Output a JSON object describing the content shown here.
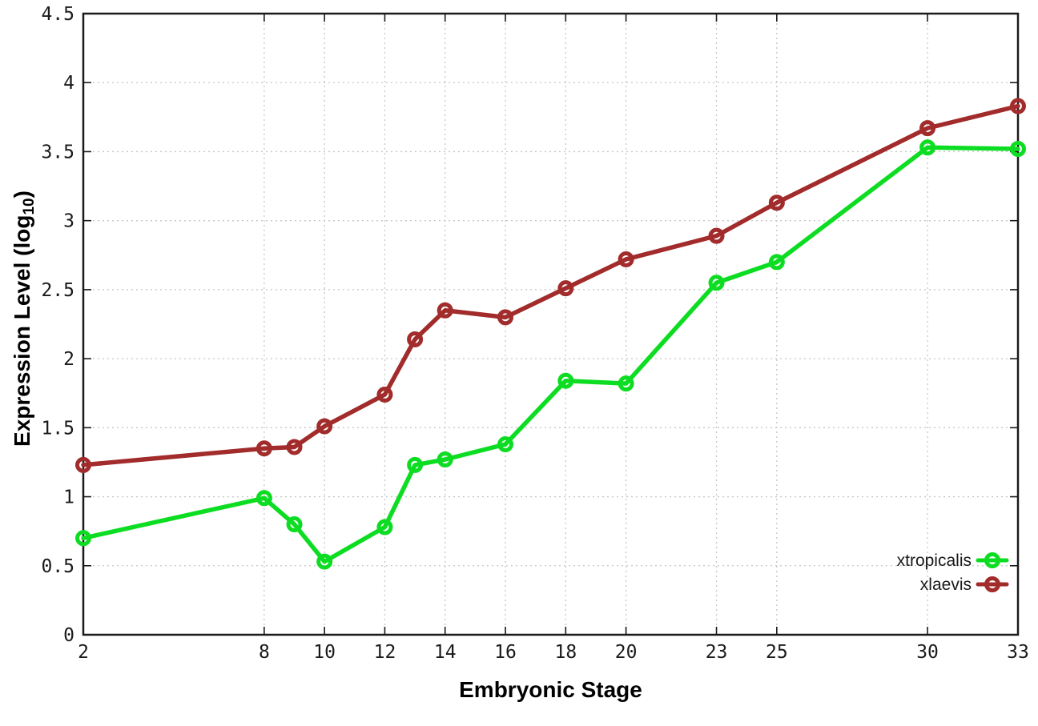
{
  "chart_data": {
    "type": "line",
    "title": "",
    "xlabel": "Embryonic Stage",
    "ylabel": "Expression Level (log10)",
    "ylabel_prefix": "Expression Level (log",
    "ylabel_sub": "10",
    "ylabel_suffix": ")",
    "xlim": [
      2,
      33
    ],
    "ylim": [
      0,
      4.5
    ],
    "grid": true,
    "legend_position": "bottom-right",
    "xtick_values": [
      2,
      8,
      10,
      12,
      14,
      16,
      18,
      20,
      23,
      25,
      30,
      33
    ],
    "xtick_labels": [
      "2",
      "8",
      "10",
      "12",
      "14",
      "16",
      "18",
      "20",
      "23",
      "25",
      "30",
      "33"
    ],
    "ytick_values": [
      0,
      0.5,
      1,
      1.5,
      2,
      2.5,
      3,
      3.5,
      4,
      4.5
    ],
    "ytick_labels": [
      "0",
      "0.5",
      "1",
      "1.5",
      "2",
      "2.5",
      "3",
      "3.5",
      "4",
      "4.5"
    ],
    "x": [
      2,
      8,
      9,
      10,
      12,
      13,
      14,
      16,
      18,
      20,
      23,
      25,
      30,
      33
    ],
    "series": [
      {
        "name": "xtropicalis",
        "color": "#0ddd22",
        "marker": "open-circle",
        "values": [
          0.7,
          0.99,
          0.8,
          0.53,
          0.78,
          1.23,
          1.27,
          1.38,
          1.84,
          1.82,
          2.55,
          2.7,
          3.53,
          3.52
        ]
      },
      {
        "name": "xlaevis",
        "color": "#a22b2b",
        "marker": "open-circle",
        "values": [
          1.23,
          1.35,
          1.36,
          1.51,
          1.74,
          2.14,
          2.35,
          2.3,
          2.51,
          2.72,
          2.89,
          3.13,
          3.67,
          3.83
        ]
      }
    ]
  },
  "colors": {
    "background": "#ffffff",
    "axis": "#1a1a1a",
    "grid": "#c6c6c6",
    "text": "#1a1a1a"
  }
}
